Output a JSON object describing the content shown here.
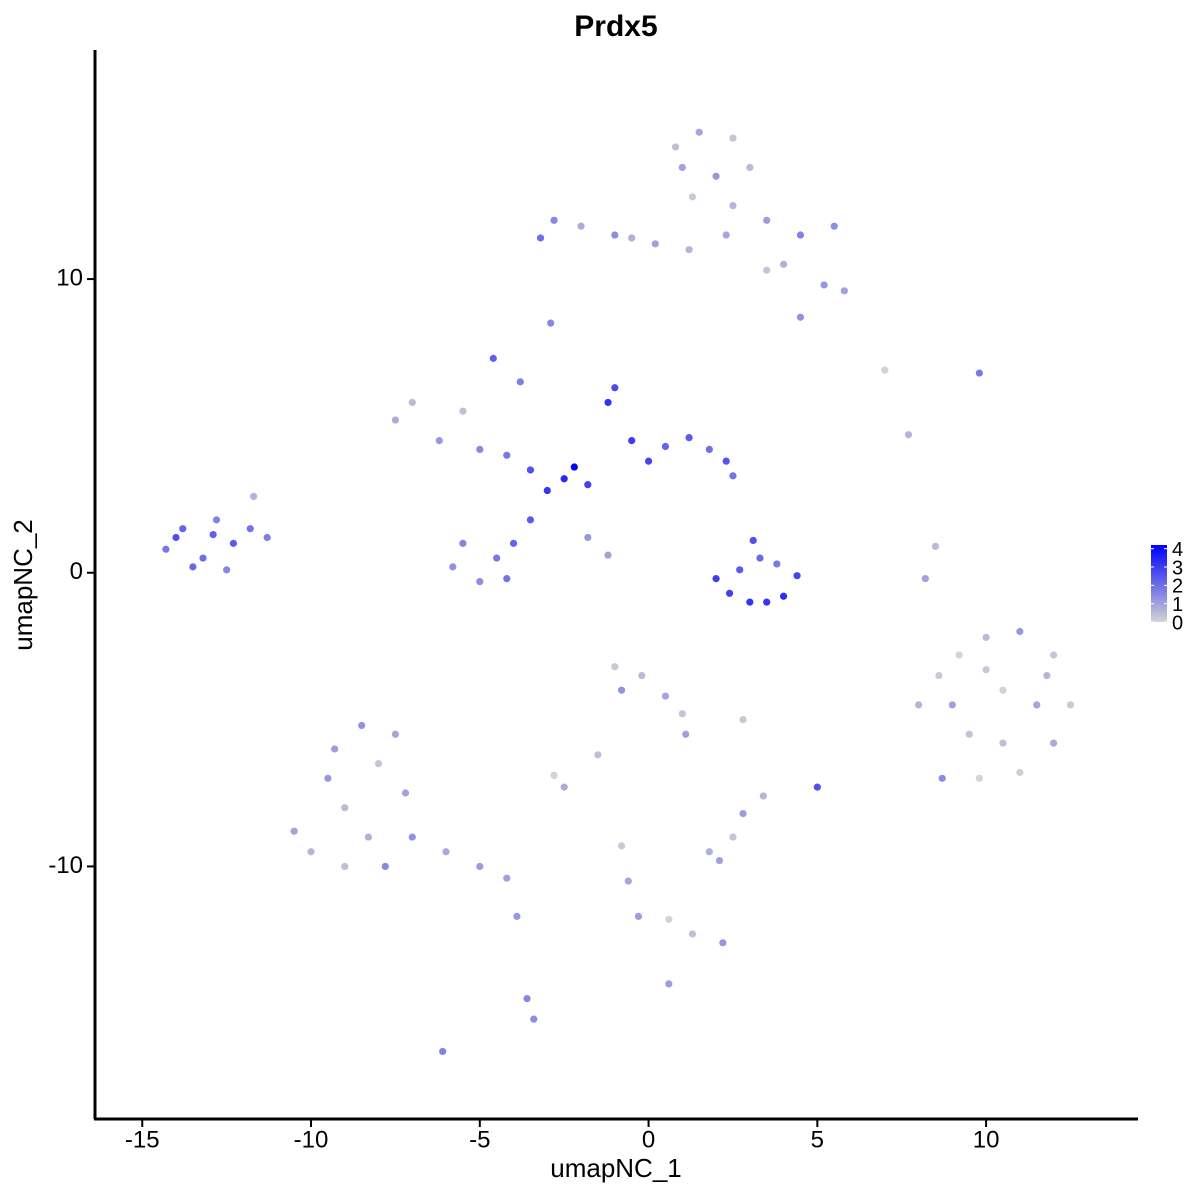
{
  "chart_data": {
    "type": "scatter",
    "title": "Prdx5",
    "x_label": "umapNC_1",
    "y_label": "umapNC_2",
    "xlim": [
      -16.4,
      14.5
    ],
    "ylim": [
      -18.6,
      17.8
    ],
    "xticks": [
      -15,
      -10,
      -5,
      0,
      5,
      10
    ],
    "yticks": [
      -10,
      0,
      10
    ],
    "color_low": "#d3d3d3",
    "color_high": "#0000ff",
    "color_lim": [
      0,
      4.2
    ],
    "color_ticks": [
      0,
      1,
      2,
      3,
      4
    ],
    "x": [
      -14.3,
      -13.8,
      -13.2,
      -12.8,
      -12.3,
      -11.8,
      -11.3,
      -13.5,
      -12.5,
      -11.7,
      -14.0,
      -12.9,
      -7.5,
      -7.0,
      -6.2,
      -5.5,
      -5.0,
      -4.2,
      -3.5,
      -3.0,
      -2.5,
      -2.2,
      -1.8,
      -1.2,
      -1.0,
      -0.5,
      0.0,
      0.5,
      1.2,
      1.8,
      2.3,
      2.5,
      -3.5,
      -4.0,
      -4.5,
      -5.5,
      -5.0,
      -4.2,
      -5.8,
      -3.8,
      -4.6,
      -1.8,
      -1.2,
      -3.2,
      -2.8,
      -2.0,
      -1.0,
      0.2,
      1.2,
      0.8,
      1.5,
      2.5,
      3.0,
      2.0,
      1.3,
      2.5,
      3.5,
      4.5,
      5.5,
      4.0,
      5.2,
      5.8,
      4.5,
      3.5,
      2.3,
      1.0,
      -2.9,
      -0.5,
      2.0,
      2.4,
      3.0,
      3.5,
      4.0,
      4.4,
      3.1,
      3.3,
      2.7,
      3.8,
      8.0,
      8.6,
      9.2,
      10.0,
      11.0,
      12.0,
      12.5,
      12.0,
      11.0,
      9.8,
      8.7,
      9.5,
      10.5,
      11.5,
      10.5,
      9.0,
      10.0,
      11.8,
      -10.5,
      -10.0,
      -9.5,
      -9.0,
      -9.3,
      -8.5,
      -8.0,
      -7.5,
      -7.2,
      -8.3,
      -7.8,
      -9.0,
      -7.0,
      -6.0,
      -5.0,
      -4.2,
      -3.9,
      -3.6,
      -3.4,
      -6.1,
      -1.0,
      -0.8,
      -0.2,
      0.5,
      1.0,
      1.1,
      -1.5,
      -2.8,
      -2.5,
      -0.8,
      -0.6,
      -0.3,
      0.6,
      1.3,
      2.2,
      0.6,
      1.8,
      2.5,
      2.8,
      2.1,
      5.0,
      3.4,
      2.8,
      8.2,
      8.5,
      7.0,
      9.8,
      7.7
    ],
    "y": [
      0.8,
      1.5,
      0.5,
      1.8,
      1.0,
      1.5,
      1.2,
      0.2,
      0.1,
      2.6,
      1.2,
      1.3,
      5.2,
      5.8,
      4.5,
      5.5,
      4.2,
      4.0,
      3.5,
      2.8,
      3.2,
      3.6,
      3.0,
      5.8,
      6.3,
      4.5,
      3.8,
      4.3,
      4.6,
      4.2,
      3.8,
      3.3,
      1.8,
      1.0,
      0.5,
      1.0,
      -0.3,
      -0.2,
      0.2,
      6.5,
      7.3,
      1.2,
      0.6,
      11.4,
      12.0,
      11.8,
      11.5,
      11.2,
      11.0,
      14.5,
      15.0,
      14.8,
      13.8,
      13.5,
      12.8,
      12.5,
      12.0,
      11.5,
      11.8,
      10.5,
      9.8,
      9.6,
      8.7,
      10.3,
      11.5,
      13.8,
      8.5,
      11.4,
      -0.2,
      -0.7,
      -1.0,
      -1.0,
      -0.8,
      -0.1,
      1.1,
      0.5,
      0.1,
      0.3,
      -4.5,
      -3.5,
      -2.8,
      -2.2,
      -2.0,
      -2.8,
      -4.5,
      -5.8,
      -6.8,
      -7.0,
      -7.0,
      -5.5,
      -4.0,
      -4.5,
      -5.8,
      -4.5,
      -3.3,
      -3.5,
      -8.8,
      -9.5,
      -7.0,
      -8.0,
      -6.0,
      -5.2,
      -6.5,
      -5.5,
      -7.5,
      -9.0,
      -10.0,
      -10.0,
      -9.0,
      -9.5,
      -10.0,
      -10.4,
      -11.7,
      -14.5,
      -15.2,
      -16.3,
      -3.2,
      -4.0,
      -3.5,
      -4.2,
      -4.8,
      -5.5,
      -6.2,
      -6.9,
      -7.3,
      -9.3,
      -10.5,
      -11.7,
      -11.8,
      -12.3,
      -12.6,
      -14.0,
      -9.5,
      -9.0,
      -8.2,
      -9.8,
      -7.3,
      -7.6,
      -5.0,
      -0.2,
      0.9,
      6.9,
      6.8,
      4.7
    ],
    "values": [
      1.8,
      2.2,
      2.0,
      1.6,
      2.4,
      1.9,
      1.7,
      2.1,
      1.5,
      0.6,
      2.6,
      2.3,
      0.8,
      0.5,
      1.2,
      0.4,
      1.5,
      1.8,
      2.6,
      3.1,
      3.4,
      4.1,
      2.9,
      3.2,
      2.7,
      3.0,
      2.8,
      2.2,
      2.4,
      2.0,
      2.5,
      1.9,
      2.4,
      2.2,
      1.8,
      1.6,
      1.4,
      1.9,
      1.3,
      1.7,
      2.3,
      1.2,
      1.0,
      2.0,
      1.5,
      0.8,
      1.4,
      1.0,
      0.6,
      0.4,
      0.9,
      0.3,
      0.5,
      1.2,
      0.2,
      0.6,
      1.1,
      1.6,
      1.4,
      0.7,
      1.2,
      1.0,
      1.3,
      0.3,
      0.9,
      1.0,
      1.5,
      0.7,
      3.0,
      2.9,
      3.2,
      3.1,
      3.3,
      2.8,
      2.6,
      2.1,
      2.4,
      1.8,
      0.6,
      0.2,
      0.0,
      0.5,
      1.2,
      0.3,
      0.2,
      0.8,
      0.1,
      0.0,
      1.4,
      0.3,
      0.0,
      0.9,
      0.4,
      1.0,
      0.2,
      0.6,
      1.0,
      0.6,
      1.2,
      0.5,
      1.1,
      1.3,
      0.3,
      0.9,
      1.0,
      0.7,
      1.5,
      0.4,
      1.3,
      0.8,
      1.1,
      1.0,
      1.2,
      1.5,
      1.4,
      1.6,
      0.2,
      1.3,
      0.5,
      0.9,
      0.3,
      1.0,
      0.4,
      0.0,
      0.8,
      0.2,
      0.9,
      1.1,
      0.0,
      0.4,
      1.2,
      1.1,
      0.7,
      0.3,
      1.1,
      1.0,
      2.6,
      0.6,
      0.2,
      1.0,
      0.5,
      0.0,
      1.8,
      0.6
    ]
  }
}
